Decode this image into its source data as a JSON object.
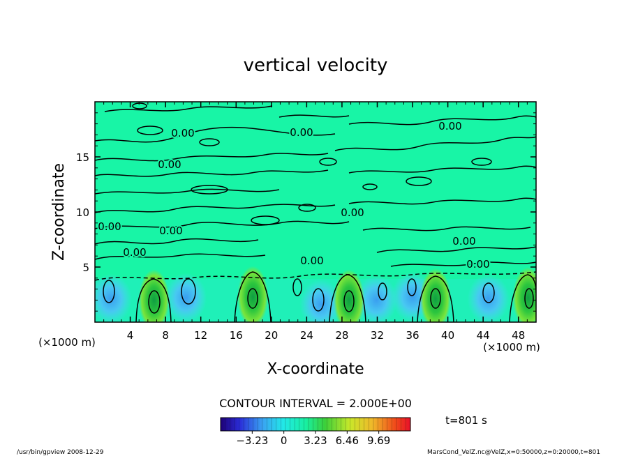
{
  "chart_data": {
    "type": "heatmap",
    "title": "vertical velocity",
    "xlabel": "X-coordinate",
    "ylabel": "Z-coordinate",
    "x_unit": "(×1000 m)",
    "z_unit": "(×1000 m)",
    "xlim": [
      0,
      50
    ],
    "ylim": [
      0,
      20
    ],
    "x_ticks": [
      "4",
      "8",
      "12",
      "16",
      "20",
      "24",
      "28",
      "32",
      "36",
      "40",
      "44",
      "48"
    ],
    "y_ticks": [
      "5",
      "10",
      "15"
    ],
    "contour_labels": [
      "0.00",
      "0.00",
      "0.00",
      "0.00",
      "0.00",
      "0.00",
      "0.00",
      "0.00",
      "0.00",
      "0.00",
      "0.00"
    ],
    "contour_interval": "CONTOUR INTERVAL = 2.000E+00",
    "colorbar_ticks": [
      "−3.23",
      "0",
      "3.23",
      "6.46",
      "9.69"
    ],
    "colorbar_range": [
      -6.46,
      12.92
    ],
    "colors": {
      "background": "#18f5a6",
      "updraft_edge": "#7ce63a",
      "updraft_core": "#12b84a",
      "downdraft": "#49d2f2",
      "downdraft_core": "#3aa9f0"
    },
    "updrafts": [
      {
        "x": 6.7,
        "z": 2.0
      },
      {
        "x": 17.9,
        "z": 2.3
      },
      {
        "x": 28.8,
        "z": 2.0
      },
      {
        "x": 38.6,
        "z": 2.1
      },
      {
        "x": 49.1,
        "z": 2.2
      }
    ],
    "downdrafts": [
      {
        "x": 1.8,
        "z": 2.1
      },
      {
        "x": 10.3,
        "z": 2.2
      },
      {
        "x": 25.6,
        "z": 1.6
      },
      {
        "x": 31.9,
        "z": 2.0
      },
      {
        "x": 36.0,
        "z": 2.3
      },
      {
        "x": 44.6,
        "z": 2.1
      }
    ]
  },
  "time_label": "t=801 s",
  "footer": {
    "left": "/usr/bin/gpview   2008-12-29",
    "right": "MarsCond_VelZ.nc@VelZ,x=0:50000,z=0:20000,t=801"
  }
}
